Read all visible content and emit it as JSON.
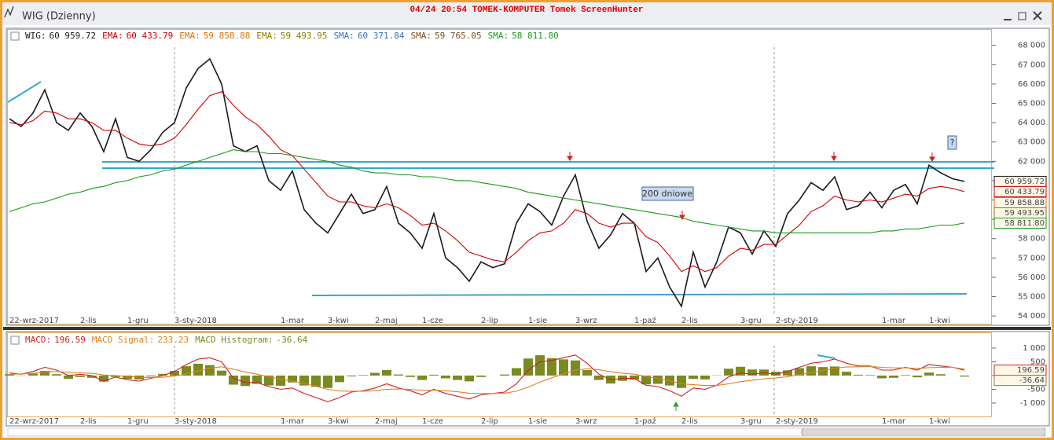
{
  "window": {
    "title": "WIG (Dzienny)",
    "watermark": "04/24 20:54 TOMEK-KOMPUTER Tomek ScreenHunter"
  },
  "chart_data": [
    {
      "type": "line",
      "categories": [
        "22-wrz-2017",
        null,
        null,
        null,
        null,
        null,
        "2-lis",
        null,
        null,
        null,
        "1-gru",
        null,
        null,
        null,
        "3-sty-2018",
        null,
        null,
        null,
        null,
        null,
        null,
        null,
        null,
        "1-mar",
        null,
        null,
        null,
        "3-kwi",
        null,
        null,
        null,
        "2-maj",
        null,
        null,
        null,
        "1-cze",
        null,
        null,
        null,
        null,
        "2-lip",
        null,
        null,
        null,
        "1-sie",
        null,
        null,
        null,
        "3-wrz",
        null,
        null,
        null,
        null,
        "1-paź",
        null,
        null,
        null,
        "2-lis",
        null,
        null,
        null,
        null,
        "3-gru",
        null,
        null,
        "2-sty-2019",
        null,
        null,
        null,
        null,
        null,
        null,
        null,
        null,
        "1-mar",
        null,
        null,
        null,
        "1-kwi",
        null,
        null,
        null
      ],
      "ylim": [
        53600,
        68800
      ],
      "yticks": [
        {
          "value": 54000,
          "label": "54 000"
        },
        {
          "value": 55000,
          "label": "55 000"
        },
        {
          "value": 56000,
          "label": "56 000"
        },
        {
          "value": 57000,
          "label": "57 000"
        },
        {
          "value": 58000,
          "label": "58 000"
        },
        {
          "value": 59000,
          "label": "59 000"
        },
        {
          "value": 60000,
          "label": "60 000"
        },
        {
          "value": 61000,
          "label": "61 000"
        },
        {
          "value": 62000,
          "label": "62 000"
        },
        {
          "value": 63000,
          "label": "63 000"
        },
        {
          "value": 64000,
          "label": "64 000"
        },
        {
          "value": 65000,
          "label": "65 000"
        },
        {
          "value": 66000,
          "label": "66 000"
        },
        {
          "value": 67000,
          "label": "67 000"
        },
        {
          "value": 68000,
          "label": "68 000"
        }
      ],
      "annotations": [
        "200 dniowe",
        "?"
      ],
      "series": [
        {
          "name": "WIG:",
          "color": "#1a1a1a",
          "axis_box": true,
          "last": {
            "value": 60959.72,
            "label": "60 959.72"
          },
          "values": [
            64200,
            63800,
            64500,
            65700,
            64000,
            63600,
            64500,
            63800,
            62500,
            64200,
            62200,
            62000,
            62600,
            63500,
            64000,
            65800,
            66800,
            67300,
            66000,
            62800,
            62500,
            62800,
            61000,
            60500,
            61500,
            59500,
            58800,
            58300,
            59300,
            60300,
            59300,
            59500,
            60700,
            58800,
            58300,
            57500,
            59300,
            57000,
            56500,
            55800,
            56800,
            56500,
            56700,
            58800,
            59800,
            59400,
            58700,
            60200,
            61300,
            58900,
            57500,
            58200,
            59300,
            58800,
            56300,
            57000,
            55500,
            54500,
            57300,
            55500,
            56800,
            58600,
            58300,
            57200,
            58400,
            57600,
            59300,
            60000,
            60900,
            60500,
            61200,
            59500,
            59700,
            60400,
            59600,
            60500,
            60800,
            59800,
            61800,
            61400,
            61100,
            60959.72
          ]
        },
        {
          "name": "EMA:",
          "color": "#d00000",
          "axis_box": true,
          "last": {
            "value": 60433.79,
            "label": "60 433.79"
          },
          "values": [
            64000,
            63900,
            64100,
            64600,
            64500,
            64200,
            64200,
            64000,
            63600,
            63600,
            63200,
            62900,
            62800,
            62900,
            63200,
            63900,
            64700,
            65400,
            65600,
            64900,
            64300,
            63900,
            63300,
            62600,
            62300,
            61600,
            60900,
            60200,
            59900,
            59900,
            59700,
            59600,
            59800,
            59600,
            59200,
            58700,
            58800,
            58400,
            57900,
            57300,
            57100,
            56900,
            56800,
            57300,
            57900,
            58300,
            58400,
            58800,
            59500,
            59300,
            58800,
            58600,
            58800,
            58800,
            58100,
            57800,
            57100,
            56300,
            56600,
            56300,
            56500,
            57100,
            57500,
            57400,
            57700,
            57700,
            58200,
            58700,
            59400,
            59700,
            60200,
            60000,
            59900,
            60000,
            59900,
            60100,
            60300,
            60200,
            60600,
            60700,
            60600,
            60433.79
          ]
        },
        {
          "name": "EMA:",
          "color": "#e07000",
          "axis_box": true,
          "last": {
            "value": 59858.88,
            "label": "59 858.88"
          }
        },
        {
          "name": "EMA:",
          "color": "#8a7a00",
          "axis_box": true,
          "last": {
            "value": 59493.95,
            "label": "59 493.95"
          }
        },
        {
          "name": "SMA:",
          "color": "#3a6fc4",
          "axis_box": false,
          "last": {
            "value": 60371.84,
            "label": "60 371.84"
          }
        },
        {
          "name": "SMA:",
          "color": "#7a5020",
          "axis_box": false,
          "last": {
            "value": 59765.05,
            "label": "59 765.05"
          }
        },
        {
          "name": "SMA:",
          "color": "#1a9a1a",
          "axis_box": true,
          "last": {
            "value": 58811.8,
            "label": "58 811.80"
          },
          "values": [
            59400,
            59600,
            59800,
            59900,
            60100,
            60300,
            60400,
            60600,
            60700,
            60900,
            61000,
            61200,
            61300,
            61500,
            61600,
            61800,
            62000,
            62200,
            62400,
            62600,
            62500,
            62500,
            62400,
            62400,
            62300,
            62200,
            62100,
            62000,
            61800,
            61700,
            61500,
            61400,
            61400,
            61300,
            61300,
            61200,
            61200,
            61100,
            61000,
            61000,
            60900,
            60800,
            60700,
            60600,
            60400,
            60300,
            60200,
            60100,
            60000,
            59900,
            59800,
            59700,
            59600,
            59500,
            59400,
            59300,
            59200,
            59100,
            58900,
            58800,
            58700,
            58600,
            58500,
            58400,
            58400,
            58300,
            58300,
            58300,
            58300,
            58300,
            58300,
            58300,
            58300,
            58300,
            58400,
            58400,
            58500,
            58500,
            58600,
            58700,
            58700,
            58811.8
          ]
        }
      ]
    },
    {
      "type": "line",
      "categories": [
        "22-wrz-2017",
        null,
        null,
        null,
        null,
        null,
        "2-lis",
        null,
        null,
        null,
        "1-gru",
        null,
        null,
        null,
        "3-sty-2018",
        null,
        null,
        null,
        null,
        null,
        null,
        null,
        null,
        "1-mar",
        null,
        null,
        null,
        "3-kwi",
        null,
        null,
        null,
        "2-maj",
        null,
        null,
        null,
        "1-cze",
        null,
        null,
        null,
        null,
        "2-lip",
        null,
        null,
        null,
        "1-sie",
        null,
        null,
        null,
        "3-wrz",
        null,
        null,
        null,
        null,
        "1-paź",
        null,
        null,
        null,
        "2-lis",
        null,
        null,
        null,
        null,
        "3-gru",
        null,
        null,
        "2-sty-2019",
        null,
        null,
        null,
        null,
        null,
        null,
        null,
        null,
        "1-mar",
        null,
        null,
        null,
        "1-kwi",
        null,
        null,
        null
      ],
      "ylim": [
        -1500,
        1500
      ],
      "yticks": [
        {
          "value": -1000,
          "label": "-1 000"
        },
        -500,
        0,
        500,
        {
          "value": 1000,
          "label": "1 000"
        }
      ],
      "series": [
        {
          "name": "MACD:",
          "color": "#d02020",
          "type": "line",
          "axis_box": true,
          "last": {
            "value": 196.59,
            "label": "196.59"
          },
          "values": [
            100,
            50,
            150,
            300,
            200,
            0,
            50,
            0,
            -200,
            -50,
            -150,
            -200,
            -100,
            0,
            150,
            400,
            600,
            650,
            500,
            -100,
            -250,
            -250,
            -400,
            -500,
            -450,
            -650,
            -800,
            -950,
            -800,
            -600,
            -550,
            -450,
            -300,
            -450,
            -550,
            -700,
            -500,
            -650,
            -750,
            -850,
            -700,
            -650,
            -600,
            -300,
            200,
            500,
            550,
            650,
            750,
            450,
            50,
            -150,
            -100,
            -100,
            -350,
            -400,
            -550,
            -750,
            -450,
            -500,
            -350,
            -50,
            100,
            50,
            100,
            50,
            150,
            300,
            450,
            500,
            600,
            450,
            350,
            350,
            200,
            200,
            300,
            200,
            400,
            350,
            300,
            196.59
          ]
        },
        {
          "name": "MACD Signal:",
          "color": "#e08020",
          "type": "line",
          "axis_box": false,
          "last": {
            "value": 233.23,
            "label": "233.23"
          },
          "values": [
            50,
            60,
            80,
            130,
            150,
            120,
            100,
            80,
            20,
            0,
            -30,
            -60,
            -70,
            -60,
            -20,
            60,
            170,
            270,
            320,
            230,
            130,
            50,
            -40,
            -130,
            -200,
            -290,
            -390,
            -500,
            -560,
            -570,
            -570,
            -550,
            -500,
            -490,
            -500,
            -540,
            -530,
            -550,
            -590,
            -640,
            -650,
            -650,
            -640,
            -570,
            -420,
            -240,
            -80,
            60,
            200,
            250,
            210,
            140,
            90,
            50,
            -30,
            -100,
            -190,
            -300,
            -330,
            -360,
            -360,
            -300,
            -220,
            -170,
            -120,
            -90,
            -40,
            30,
            110,
            190,
            270,
            310,
            320,
            330,
            300,
            280,
            280,
            260,
            290,
            300,
            300,
            233.23
          ]
        },
        {
          "name": "MACD Histogram:",
          "color": "#7a8a20",
          "type": "bar",
          "axis_box": true,
          "last": {
            "value": -36.64,
            "label": "-36.64"
          },
          "values": [
            50,
            -10,
            70,
            170,
            50,
            -120,
            -50,
            -80,
            -220,
            -50,
            -120,
            -140,
            -30,
            60,
            170,
            340,
            430,
            380,
            180,
            -330,
            -380,
            -300,
            -360,
            -370,
            -250,
            -360,
            -410,
            -450,
            -240,
            -30,
            20,
            100,
            200,
            40,
            -50,
            -160,
            30,
            -100,
            -160,
            -210,
            -50,
            0,
            40,
            270,
            620,
            740,
            630,
            590,
            550,
            200,
            -160,
            -290,
            -190,
            -150,
            -320,
            -300,
            -360,
            -450,
            -120,
            -140,
            10,
            250,
            320,
            220,
            220,
            140,
            190,
            270,
            340,
            310,
            330,
            140,
            30,
            20,
            -100,
            -80,
            20,
            -60,
            110,
            50,
            0,
            -36.64
          ]
        }
      ]
    }
  ]
}
